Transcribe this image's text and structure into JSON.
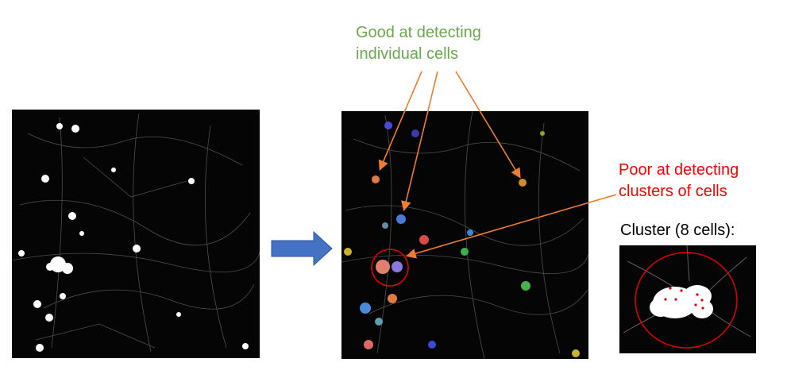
{
  "labels": {
    "good_line1": "Good at detecting",
    "good_line2": "individual cells",
    "poor_line1": "Poor at detecting",
    "poor_line2": "clusters of cells",
    "cluster_title": "Cluster (8 cells):"
  },
  "colors": {
    "good_text": "#6aa84f",
    "poor_text": "#ff0000",
    "annotation_arrow": "#ed7d31",
    "flow_arrow": "#4472c4",
    "cluster_circle": "#e00000"
  }
}
